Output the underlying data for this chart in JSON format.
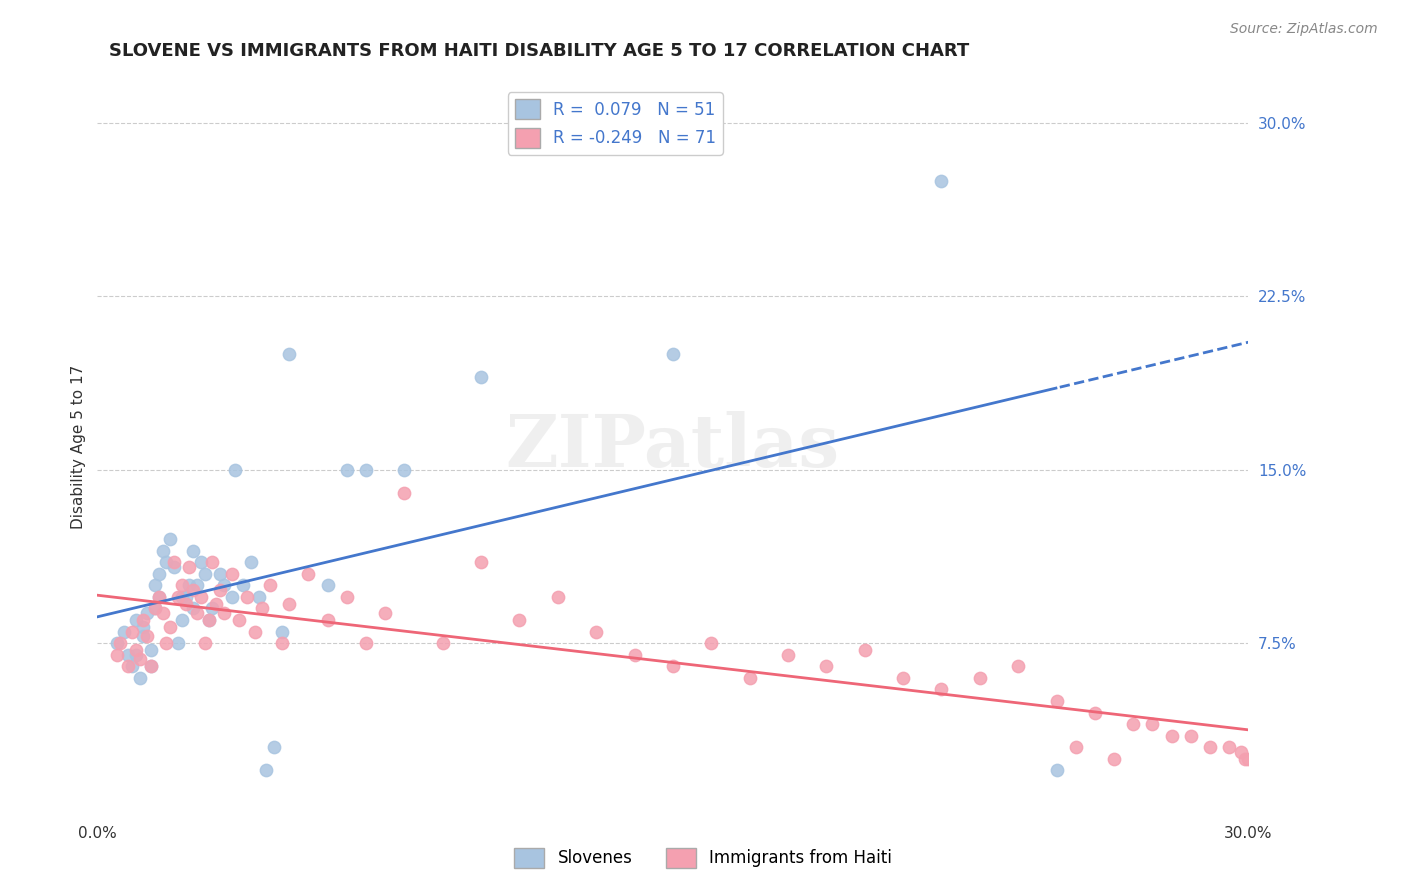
{
  "title": "SLOVENE VS IMMIGRANTS FROM HAITI DISABILITY AGE 5 TO 17 CORRELATION CHART",
  "source": "Source: ZipAtlas.com",
  "ylabel": "Disability Age 5 to 17",
  "xlim": [
    0.0,
    0.3
  ],
  "ylim": [
    0.0,
    0.32
  ],
  "yticks": [
    0.075,
    0.15,
    0.225,
    0.3
  ],
  "ytick_labels": [
    "7.5%",
    "15.0%",
    "22.5%",
    "30.0%"
  ],
  "background_color": "#ffffff",
  "grid_color": "#cccccc",
  "slovene_color": "#a8c4e0",
  "haiti_color": "#f4a0b0",
  "slovene_line_color": "#4477cc",
  "haiti_line_color": "#ee6677",
  "legend_R1": "R =  0.079",
  "legend_N1": "N = 51",
  "legend_R2": "R = -0.249",
  "legend_N2": "N = 71",
  "watermark": "ZIPatlas",
  "slovene_scatter_x": [
    0.005,
    0.007,
    0.008,
    0.009,
    0.01,
    0.01,
    0.011,
    0.012,
    0.012,
    0.013,
    0.014,
    0.014,
    0.015,
    0.015,
    0.016,
    0.016,
    0.017,
    0.018,
    0.019,
    0.02,
    0.021,
    0.022,
    0.022,
    0.023,
    0.024,
    0.025,
    0.025,
    0.026,
    0.027,
    0.028,
    0.029,
    0.03,
    0.032,
    0.033,
    0.035,
    0.036,
    0.038,
    0.04,
    0.042,
    0.044,
    0.046,
    0.048,
    0.05,
    0.06,
    0.065,
    0.07,
    0.08,
    0.1,
    0.15,
    0.22,
    0.25
  ],
  "slovene_scatter_y": [
    0.075,
    0.08,
    0.07,
    0.065,
    0.085,
    0.07,
    0.06,
    0.082,
    0.078,
    0.088,
    0.072,
    0.065,
    0.09,
    0.1,
    0.095,
    0.105,
    0.115,
    0.11,
    0.12,
    0.108,
    0.075,
    0.095,
    0.085,
    0.095,
    0.1,
    0.115,
    0.09,
    0.1,
    0.11,
    0.105,
    0.085,
    0.09,
    0.105,
    0.1,
    0.095,
    0.15,
    0.1,
    0.11,
    0.095,
    0.02,
    0.03,
    0.08,
    0.2,
    0.1,
    0.15,
    0.15,
    0.15,
    0.19,
    0.2,
    0.275,
    0.02
  ],
  "haiti_scatter_x": [
    0.005,
    0.006,
    0.008,
    0.009,
    0.01,
    0.011,
    0.012,
    0.013,
    0.014,
    0.015,
    0.016,
    0.017,
    0.018,
    0.019,
    0.02,
    0.021,
    0.022,
    0.023,
    0.024,
    0.025,
    0.026,
    0.027,
    0.028,
    0.029,
    0.03,
    0.031,
    0.032,
    0.033,
    0.035,
    0.037,
    0.039,
    0.041,
    0.043,
    0.045,
    0.048,
    0.05,
    0.055,
    0.06,
    0.065,
    0.07,
    0.075,
    0.08,
    0.09,
    0.1,
    0.11,
    0.12,
    0.13,
    0.14,
    0.15,
    0.16,
    0.17,
    0.18,
    0.19,
    0.2,
    0.21,
    0.22,
    0.23,
    0.24,
    0.25,
    0.26,
    0.27,
    0.28,
    0.29,
    0.295,
    0.298,
    0.299,
    0.3,
    0.285,
    0.275,
    0.265,
    0.255
  ],
  "haiti_scatter_y": [
    0.07,
    0.075,
    0.065,
    0.08,
    0.072,
    0.068,
    0.085,
    0.078,
    0.065,
    0.09,
    0.095,
    0.088,
    0.075,
    0.082,
    0.11,
    0.095,
    0.1,
    0.092,
    0.108,
    0.098,
    0.088,
    0.095,
    0.075,
    0.085,
    0.11,
    0.092,
    0.098,
    0.088,
    0.105,
    0.085,
    0.095,
    0.08,
    0.09,
    0.1,
    0.075,
    0.092,
    0.105,
    0.085,
    0.095,
    0.075,
    0.088,
    0.14,
    0.075,
    0.11,
    0.085,
    0.095,
    0.08,
    0.07,
    0.065,
    0.075,
    0.06,
    0.07,
    0.065,
    0.072,
    0.06,
    0.055,
    0.06,
    0.065,
    0.05,
    0.045,
    0.04,
    0.035,
    0.03,
    0.03,
    0.028,
    0.025,
    0.025,
    0.035,
    0.04,
    0.025,
    0.03
  ]
}
